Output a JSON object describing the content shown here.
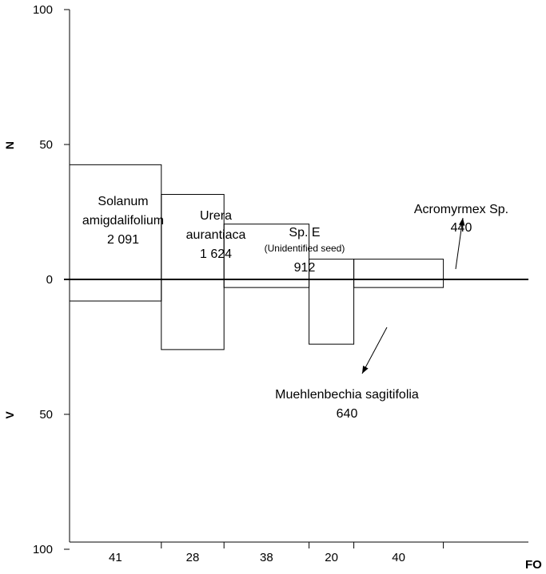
{
  "chart_data": {
    "type": "bar",
    "xlabel": "FO",
    "ylabel_top": "N",
    "ylabel_bottom": "V",
    "ylim": [
      -100,
      100
    ],
    "yticks": [
      {
        "value": 100,
        "label": "100"
      },
      {
        "value": 50,
        "label": "50"
      },
      {
        "value": 0,
        "label": "0"
      },
      {
        "value": -50,
        "label": "50"
      },
      {
        "value": -100,
        "label": "100"
      }
    ],
    "bars": [
      {
        "fo": 41,
        "fo_label": "41",
        "n": 42.5,
        "v": 8,
        "label_lines": [
          "Solanum",
          "amigdalifolium",
          "2 091"
        ]
      },
      {
        "fo": 28,
        "fo_label": "28",
        "n": 31.5,
        "v": 26,
        "label_lines": [
          "Urera",
          "aurantiaca",
          "1 624"
        ]
      },
      {
        "fo": 38,
        "fo_label": "38",
        "n": 20.5,
        "v": 3,
        "label_lines": [
          "Sp. E",
          "(Unidentified seed)",
          "912"
        ]
      },
      {
        "fo": 20,
        "fo_label": "20",
        "n": 7.5,
        "v": 24,
        "label_lines": [
          "Muehlenbechia sagitifolia",
          "640"
        ]
      },
      {
        "fo": 40,
        "fo_label": "40",
        "n": 7.5,
        "v": 3,
        "label_lines": [
          "Acromyrmex Sp.",
          "440"
        ]
      }
    ]
  }
}
